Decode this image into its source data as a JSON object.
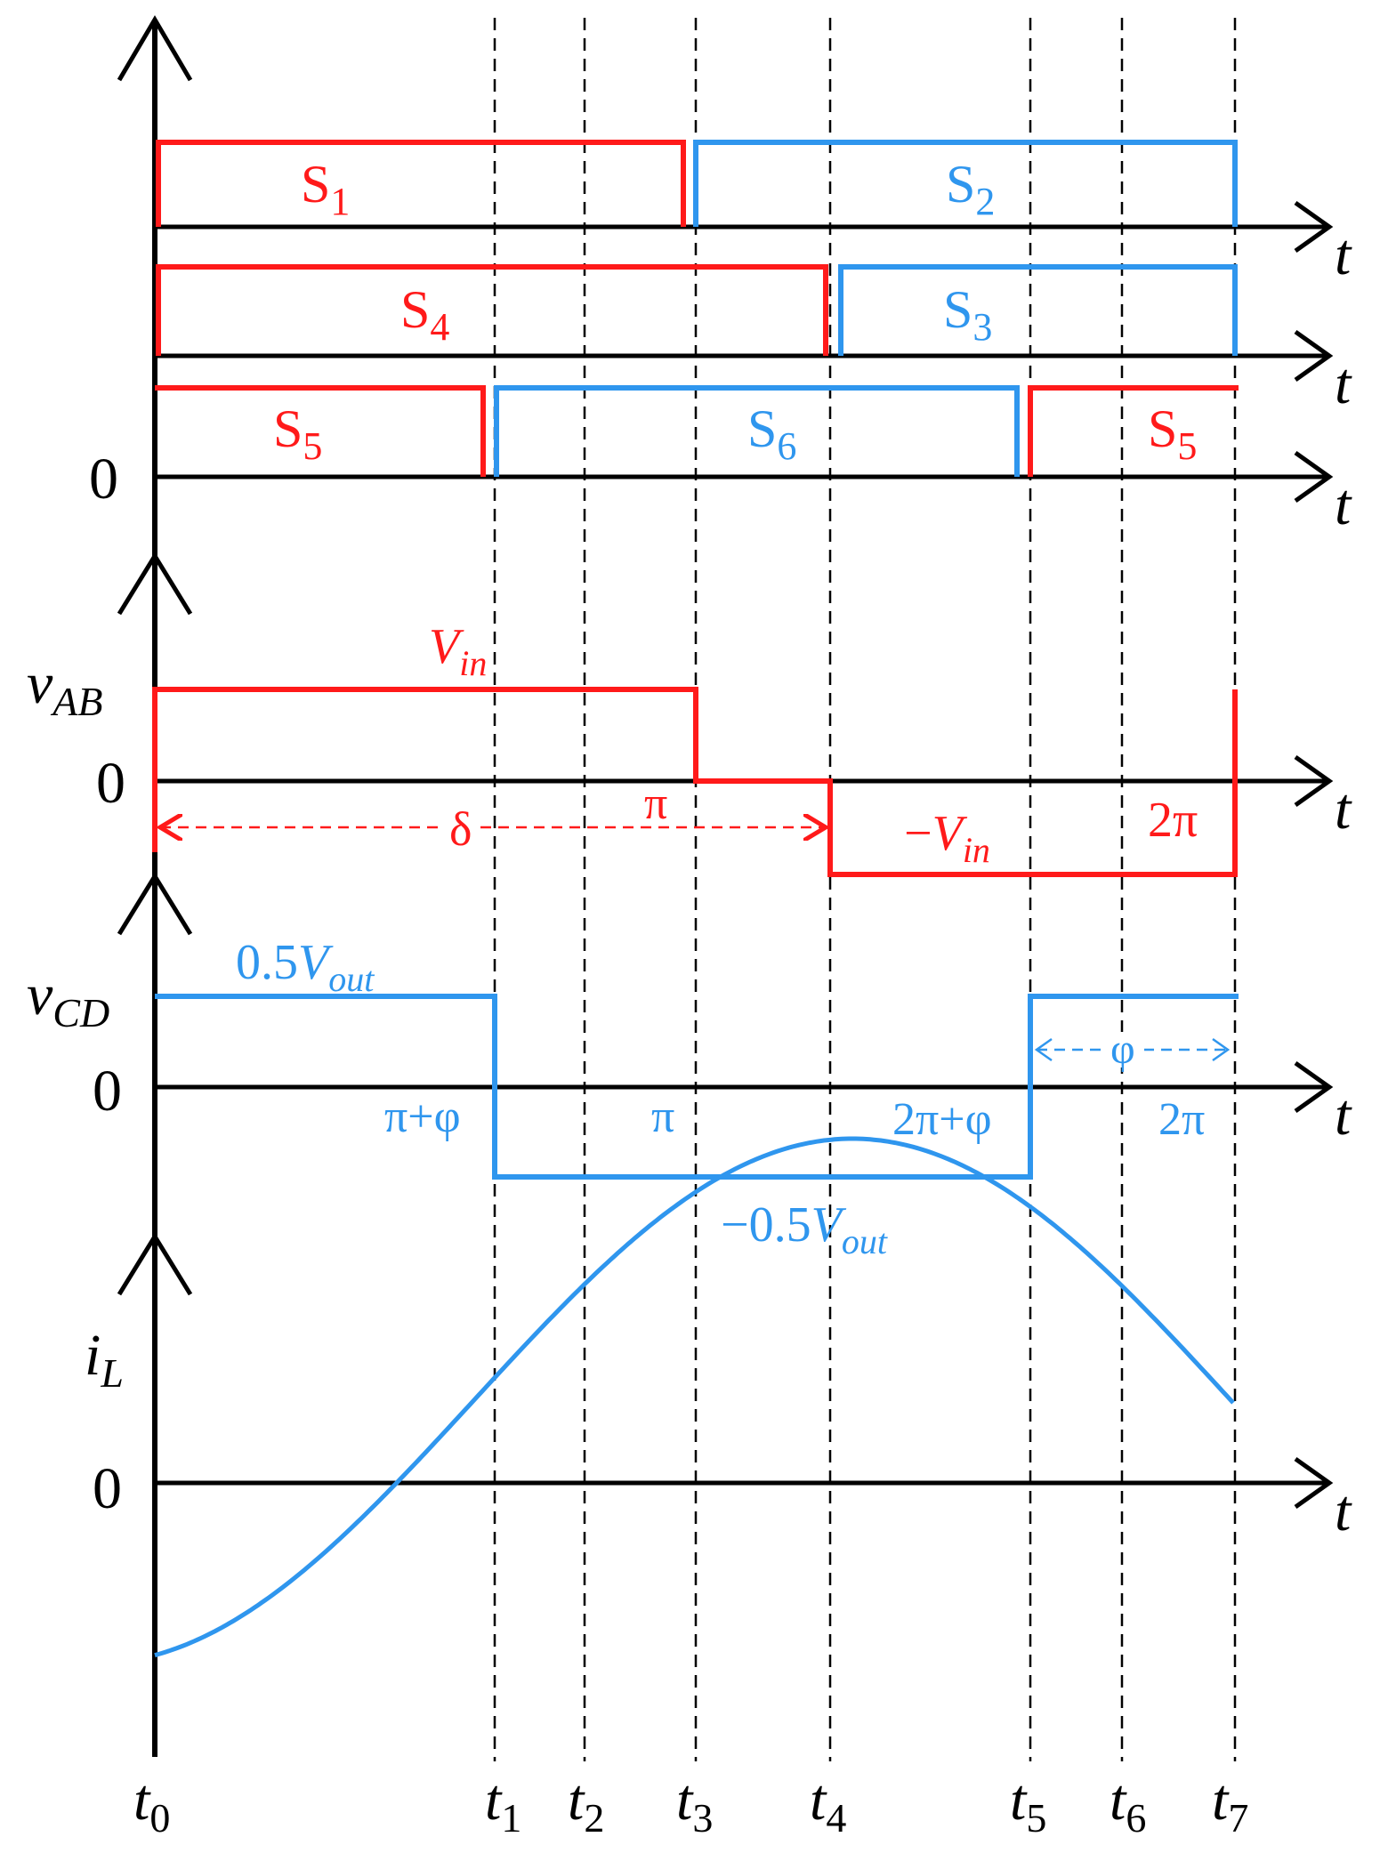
{
  "colors": {
    "axis": "#000000",
    "red": "#ff1a1a",
    "blue": "#2f96ee"
  },
  "time_marks": {
    "base": "t",
    "subs": [
      "0",
      "1",
      "2",
      "3",
      "4",
      "5",
      "6",
      "7"
    ]
  },
  "axis_label_t": "t",
  "zero_label": "0",
  "switches": {
    "row1": {
      "left": {
        "base": "S",
        "sub": "1"
      },
      "right": {
        "base": "S",
        "sub": "2"
      }
    },
    "row2": {
      "left": {
        "base": "S",
        "sub": "4"
      },
      "right": {
        "base": "S",
        "sub": "3"
      }
    },
    "row3": {
      "left": {
        "base": "S",
        "sub": "5"
      },
      "mid": {
        "base": "S",
        "sub": "6"
      },
      "right": {
        "base": "S",
        "sub": "5"
      }
    }
  },
  "vab": {
    "label": {
      "base": "v",
      "sub": "AB"
    },
    "vin": {
      "base": "V",
      "sub": "in"
    },
    "neg_vin": {
      "prefix": "−",
      "base": "V",
      "sub": "in"
    },
    "pi": "π",
    "two_pi": "2π",
    "delta": "δ"
  },
  "vcd": {
    "label": {
      "base": "v",
      "sub": "CD"
    },
    "pos": {
      "prefix": "0.5",
      "base": "V",
      "sub": "out"
    },
    "neg": {
      "prefix": "−0.5",
      "base": "V",
      "sub": "out"
    },
    "pi_plus_phi": "π+φ",
    "pi": "π",
    "two_pi_plus_phi": "2π+φ",
    "two_pi": "2π",
    "phi": "φ"
  },
  "il": {
    "label": {
      "base": "i",
      "sub": "L"
    }
  }
}
